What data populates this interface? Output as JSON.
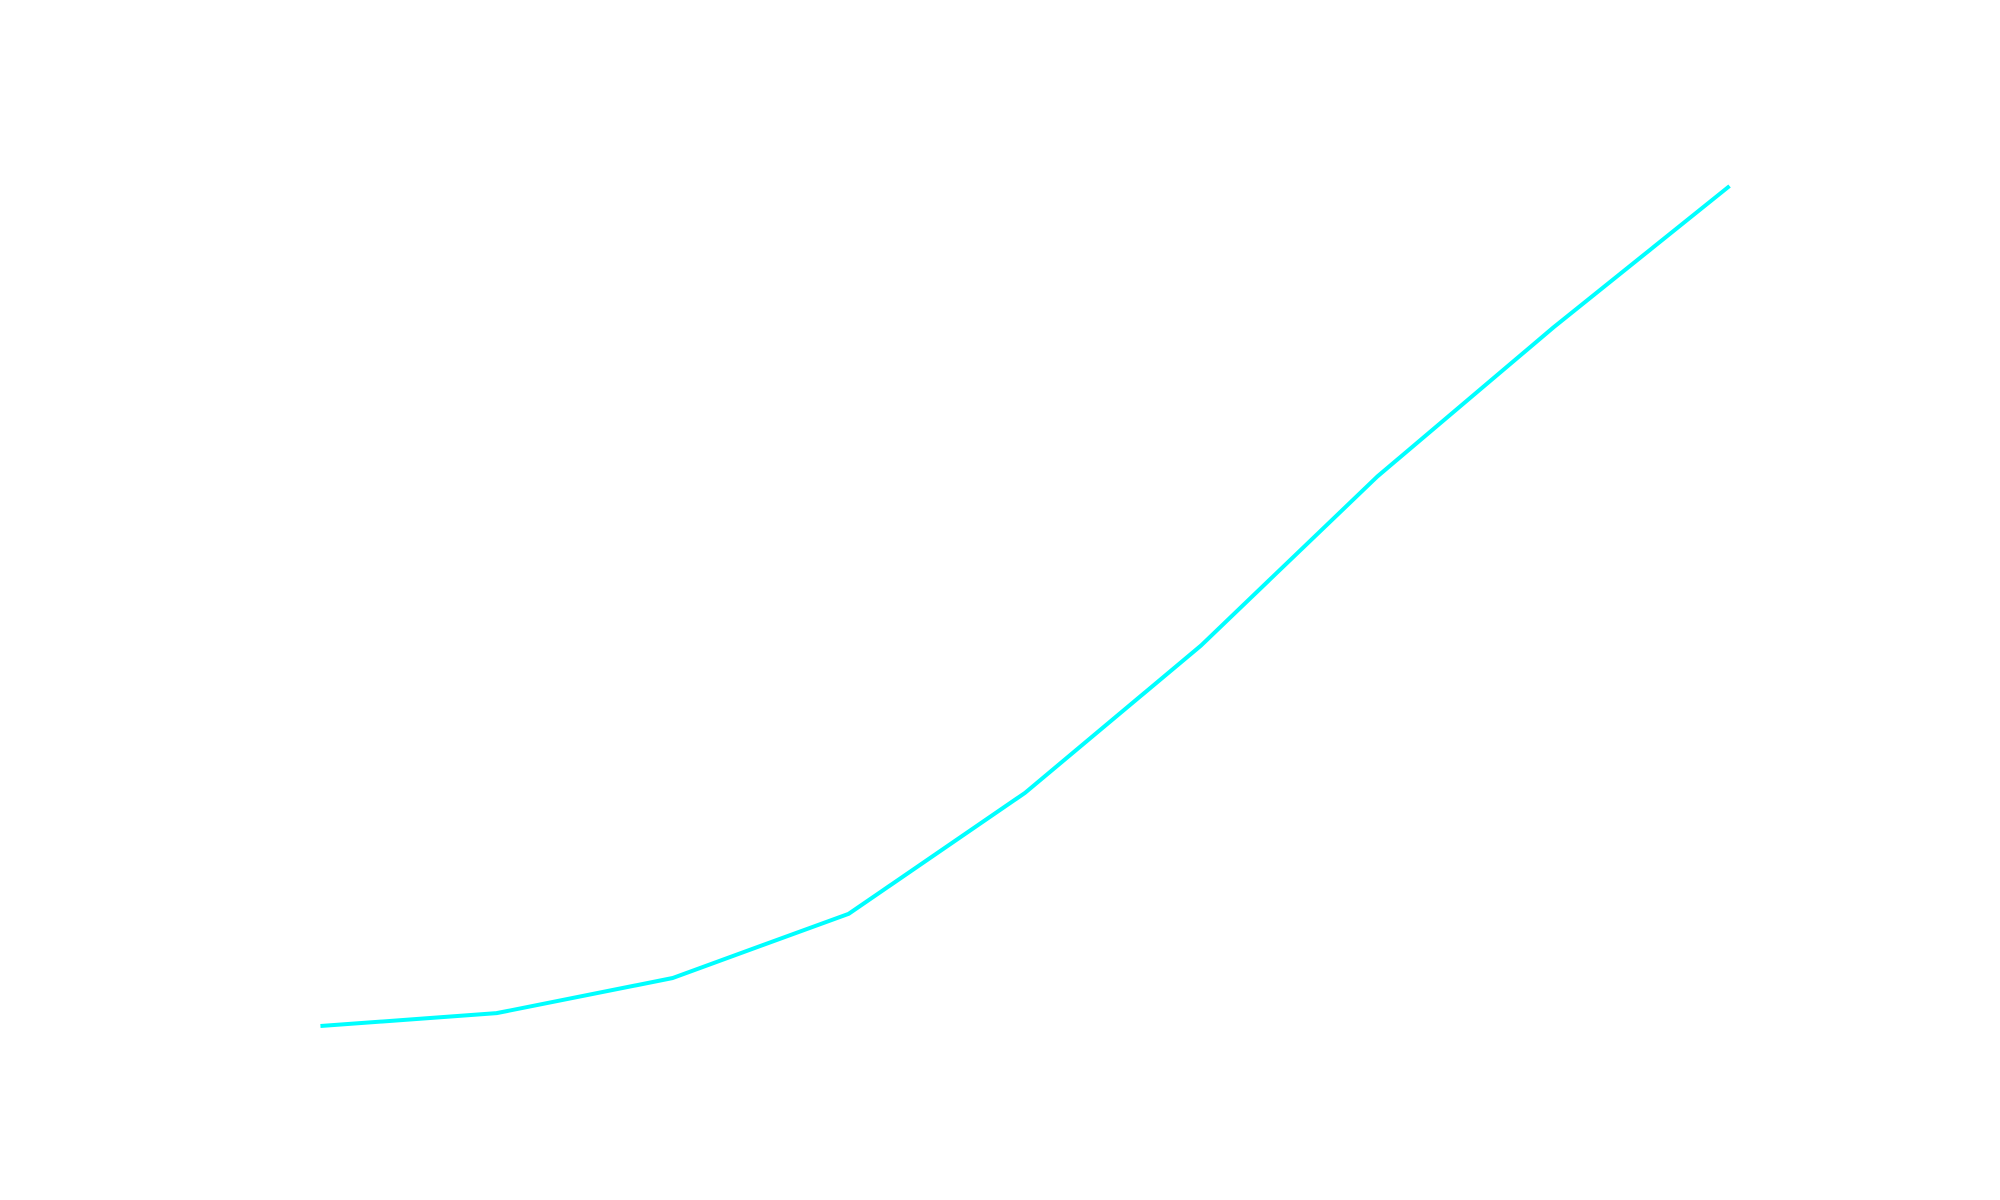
{
  "chart_data": {
    "type": "line",
    "x": [
      0,
      1,
      2,
      3,
      4,
      5,
      6,
      7,
      8
    ],
    "values": [
      0,
      1.5,
      5.6,
      13.1,
      27.2,
      44.4,
      64.1,
      81.5,
      98
    ],
    "color": "#00ffff",
    "xlim": [
      -0.4,
      8.4
    ],
    "ylim": [
      -4.9,
      102.9
    ]
  }
}
